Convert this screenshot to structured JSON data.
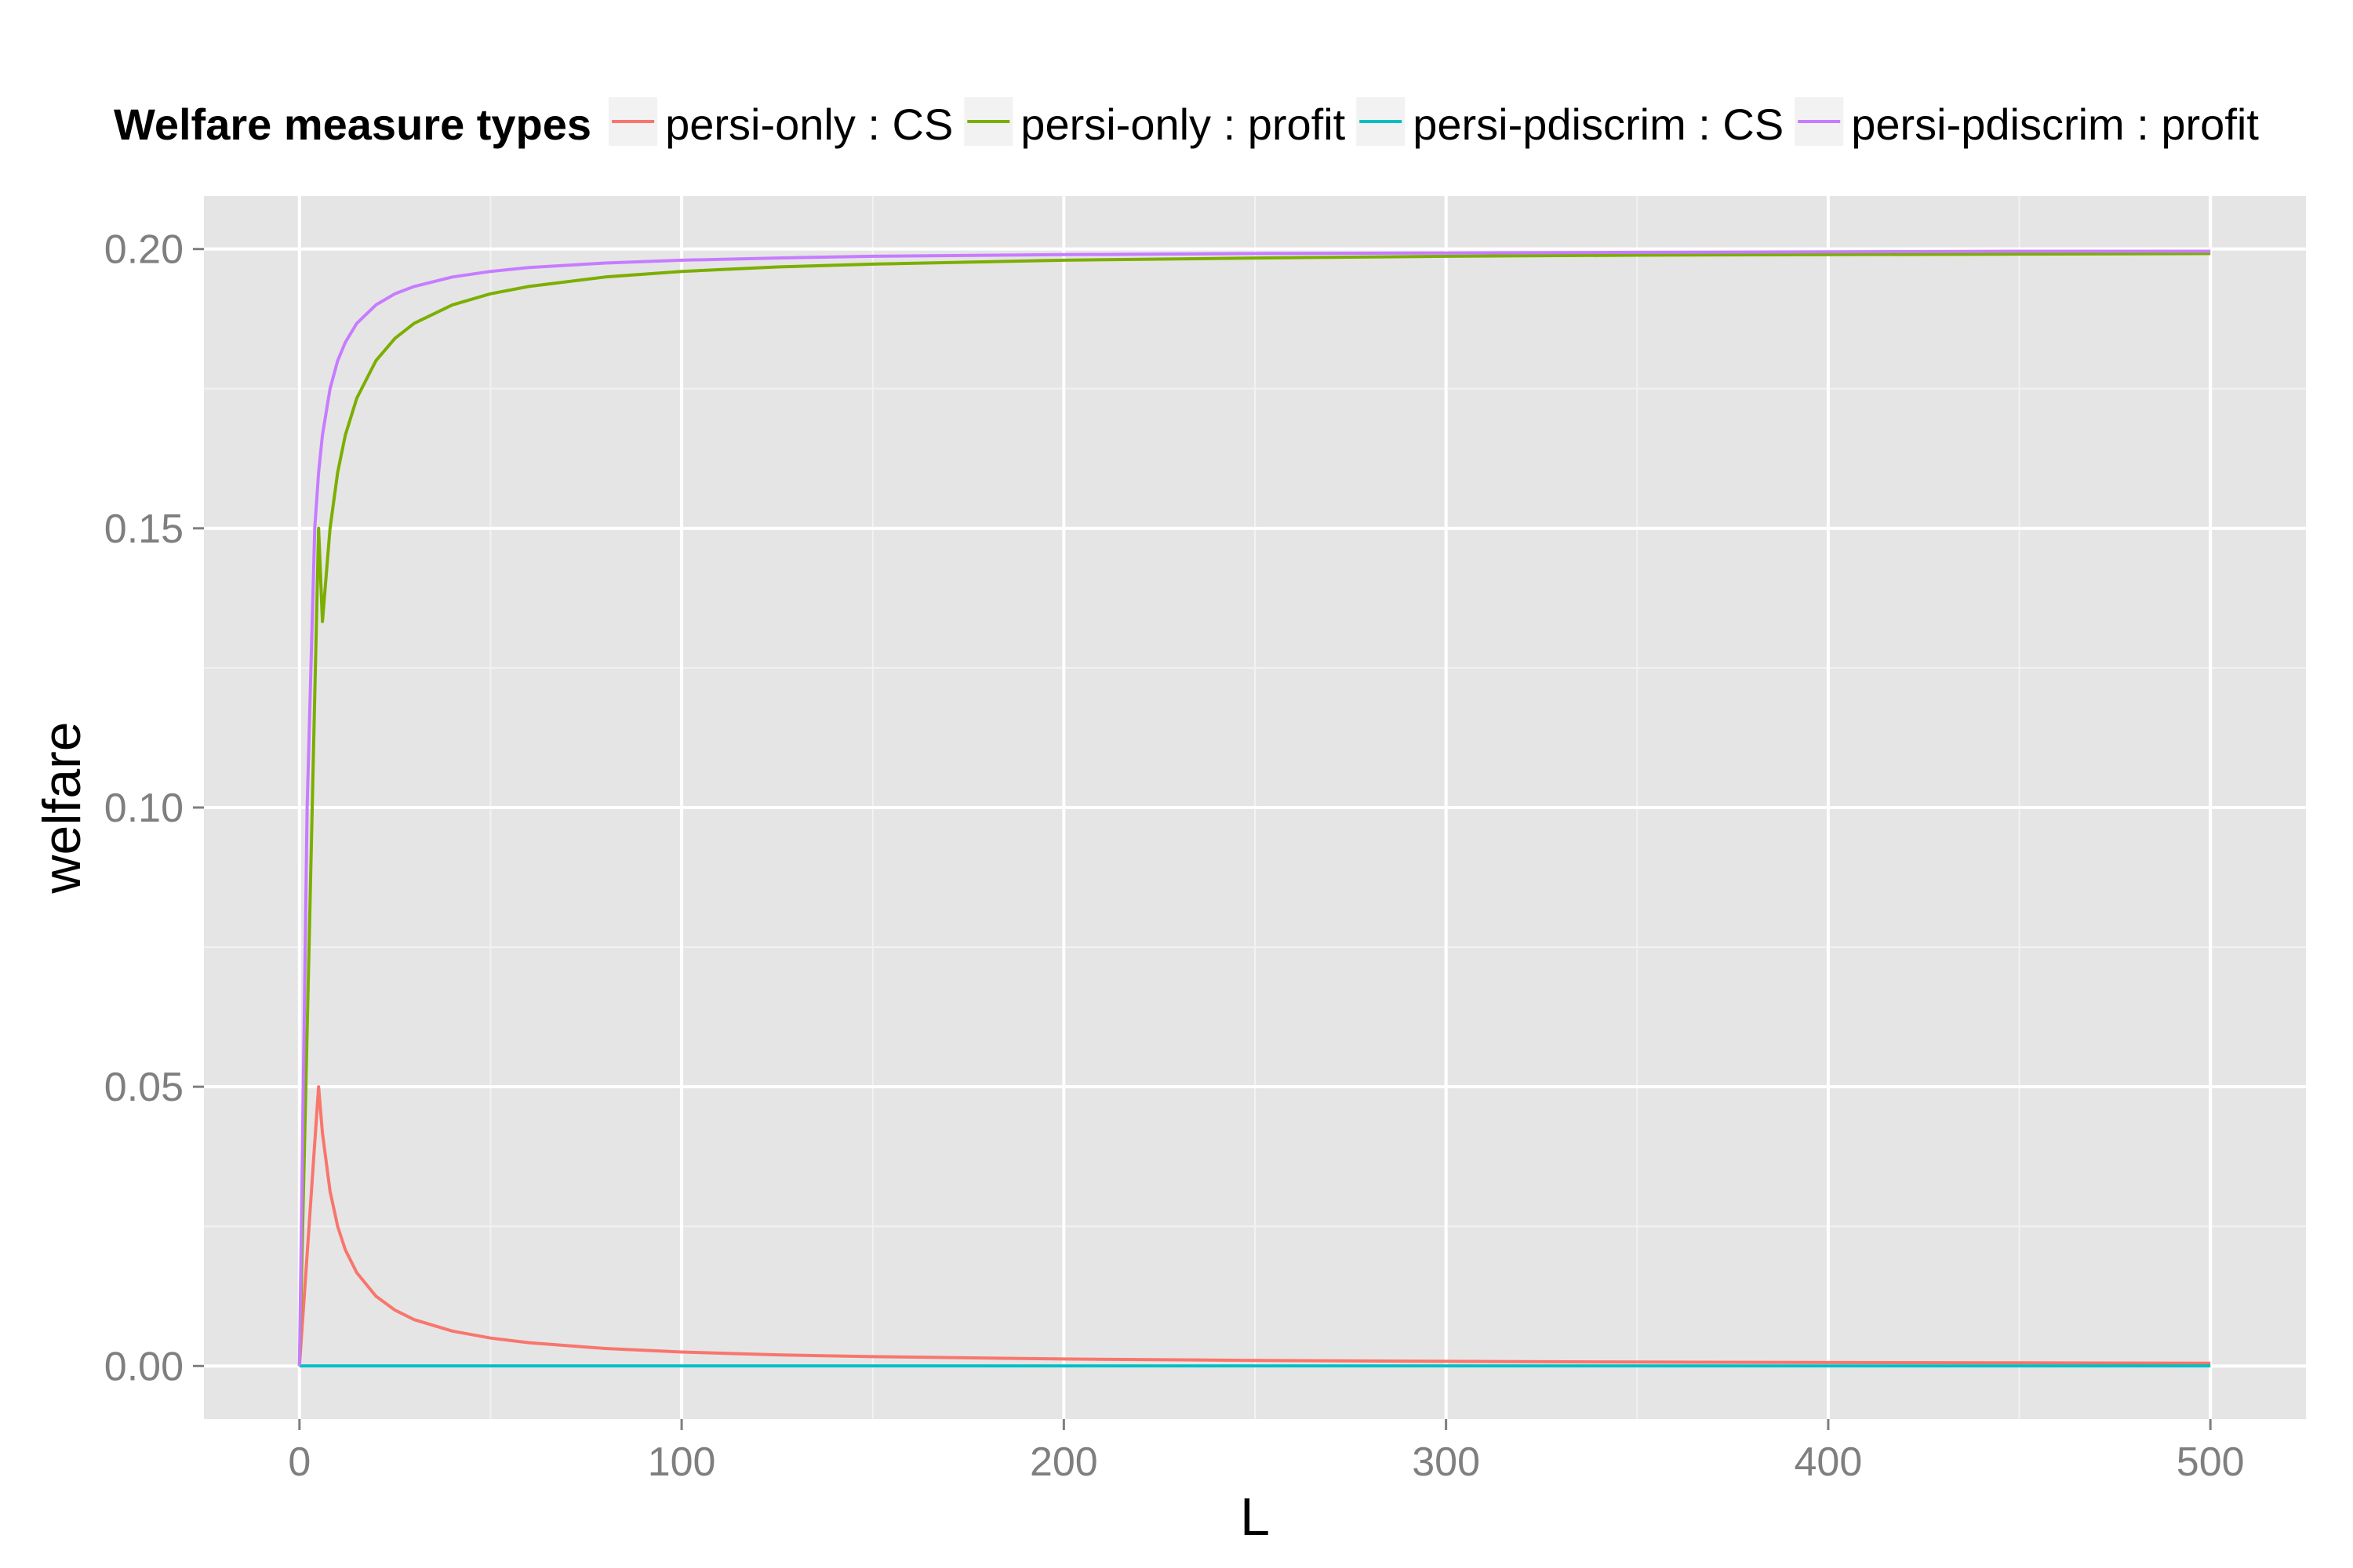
{
  "chart_data": {
    "type": "line",
    "title": "",
    "xlabel": "L",
    "ylabel": "welfare",
    "xlim": [
      -25,
      525
    ],
    "ylim": [
      -0.0095,
      0.2095
    ],
    "x_ticks": [
      0,
      100,
      200,
      300,
      400,
      500
    ],
    "x_tick_labels": [
      "0",
      "100",
      "200",
      "300",
      "400",
      "500"
    ],
    "y_ticks": [
      0.0,
      0.05,
      0.1,
      0.15,
      0.2
    ],
    "y_tick_labels": [
      "0.00",
      "0.05",
      "0.10",
      "0.15",
      "0.20"
    ],
    "grid": true,
    "panel_background": "#E5E5E5",
    "legend": {
      "title": "Welfare measure types",
      "position": "top"
    },
    "x": [
      0,
      2,
      4,
      5,
      6,
      8,
      10,
      12,
      15,
      20,
      25,
      30,
      40,
      50,
      60,
      80,
      100,
      125,
      150,
      200,
      250,
      300,
      350,
      400,
      450,
      500
    ],
    "series": [
      {
        "name": "persi-only : CS",
        "color": "#F8766D",
        "values": [
          0.0,
          0.02,
          0.04,
          0.05,
          0.0417,
          0.0313,
          0.025,
          0.0208,
          0.0167,
          0.0125,
          0.01,
          0.0083,
          0.00625,
          0.005,
          0.00417,
          0.00313,
          0.0025,
          0.002,
          0.00167,
          0.00125,
          0.001,
          0.00083,
          0.00071,
          0.000625,
          0.00056,
          0.0005
        ]
      },
      {
        "name": "persi-only : profit",
        "color": "#7CAE00",
        "values": [
          0.0,
          0.06,
          0.12,
          0.15,
          0.1333,
          0.15,
          0.16,
          0.1667,
          0.1733,
          0.18,
          0.184,
          0.1867,
          0.19,
          0.192,
          0.1933,
          0.195,
          0.196,
          0.1968,
          0.1973,
          0.198,
          0.1984,
          0.1987,
          0.1989,
          0.199,
          0.1991,
          0.1992
        ]
      },
      {
        "name": "persi-pdiscrim : CS",
        "color": "#00BFC4",
        "values": [
          0.0,
          0.0,
          0.0,
          0.0,
          0.0,
          0.0,
          0.0,
          0.0,
          0.0,
          0.0,
          0.0,
          0.0,
          0.0,
          0.0,
          0.0,
          0.0,
          0.0,
          0.0,
          0.0,
          0.0,
          0.0,
          0.0,
          0.0,
          0.0,
          0.0,
          0.0
        ]
      },
      {
        "name": "persi-pdiscrim : profit",
        "color": "#C77CFF",
        "values": [
          0.0,
          0.1,
          0.15,
          0.16,
          0.1667,
          0.175,
          0.18,
          0.1833,
          0.1867,
          0.19,
          0.192,
          0.1933,
          0.195,
          0.196,
          0.1967,
          0.1975,
          0.198,
          0.1984,
          0.1987,
          0.199,
          0.1992,
          0.1993,
          0.1994,
          0.1995,
          0.1996,
          0.1996
        ]
      }
    ]
  }
}
